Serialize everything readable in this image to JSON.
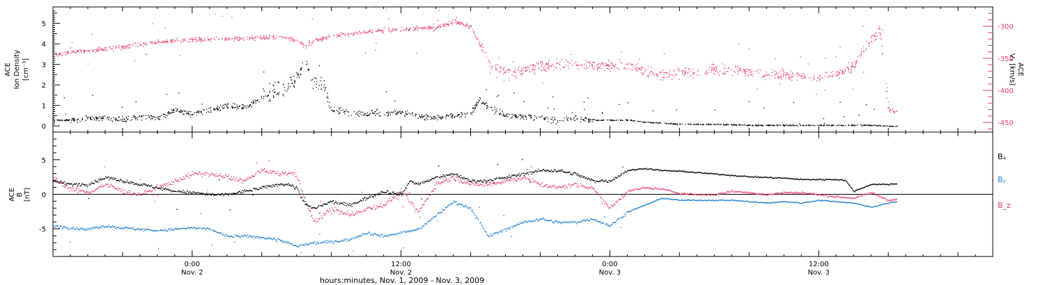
{
  "figure": {
    "xaxis_label": "hours:minutes, Nov.  1, 2009 - Nov.  3, 2009",
    "x_ticks": [
      {
        "hours": 24,
        "time": "0:00",
        "date": "Nov. 2"
      },
      {
        "hours": 36,
        "time": "12:00",
        "date": "Nov. 2"
      },
      {
        "hours": 48,
        "time": "0:00",
        "date": "Nov. 3"
      },
      {
        "hours": 60,
        "time": "12:00",
        "date": "Nov. 3"
      }
    ]
  },
  "colors": {
    "density": "#000000",
    "speed": "#e8416a",
    "bx": "#000000",
    "by": "#1a7fd4",
    "bz": "#e8416a"
  },
  "chart_data": [
    {
      "type": "scatter",
      "title": "",
      "xlabel": "hours:minutes, Nov.  1, 2009 - Nov.  3, 2009",
      "xunit": "hours since Nov. 1, 2009 00:00",
      "xlim": [
        16,
        70
      ],
      "ylabel_left_lines": [
        "ACE",
        "Ion Density",
        "[cm⁻³]"
      ],
      "ylim_left": [
        -0.3,
        5.8
      ],
      "yticks_left": [
        "0",
        "1",
        "2",
        "3",
        "4",
        "5"
      ],
      "ylabel_right_lines": [
        "ACE",
        "Vₓ [km/s]"
      ],
      "ylim_right": [
        -465,
        -270
      ],
      "yticks_right": [
        "-300",
        "-350",
        "-400",
        "-450"
      ],
      "series": [
        {
          "axis": "left",
          "x": [
            16,
            17,
            18,
            19,
            20,
            21,
            22,
            23,
            24,
            25,
            26,
            27,
            28,
            29,
            29.5,
            30,
            30.5,
            31,
            31.5,
            32,
            33,
            34,
            35,
            36,
            37,
            38,
            38.5,
            39,
            40,
            40.5,
            41,
            42,
            43,
            44,
            45,
            46,
            47,
            48,
            49,
            50,
            51,
            52,
            54,
            56,
            58,
            60,
            62,
            63,
            64,
            64.5
          ],
          "y": [
            0.3,
            0.3,
            0.4,
            0.4,
            0.3,
            0.5,
            0.4,
            0.8,
            0.6,
            0.8,
            1.0,
            0.9,
            1.4,
            1.8,
            2.0,
            2.3,
            3.2,
            2.2,
            2.0,
            0.8,
            0.7,
            0.6,
            0.6,
            0.7,
            0.5,
            0.4,
            0.5,
            0.5,
            0.6,
            1.3,
            0.9,
            0.5,
            0.5,
            0.4,
            0.3,
            0.4,
            0.3,
            0.3,
            0.3,
            0.2,
            0.15,
            0.1,
            0.1,
            0.05,
            0.05,
            0.05,
            0.05,
            0.05,
            0.0,
            0.0
          ]
        },
        {
          "axis": "right",
          "x": [
            16,
            17,
            18,
            19,
            20,
            21,
            22,
            23,
            24,
            25,
            26,
            27,
            28,
            29,
            29.5,
            30,
            30.5,
            31,
            32,
            33,
            34,
            35,
            36,
            37,
            38,
            39,
            40,
            41,
            42,
            43,
            44,
            45,
            46,
            47,
            48,
            49,
            50,
            51,
            52,
            53,
            54,
            55,
            56,
            57,
            58,
            59,
            60,
            61,
            62,
            62.5,
            63,
            63.5,
            64,
            64.5
          ],
          "y": [
            -345,
            -340,
            -338,
            -335,
            -332,
            -328,
            -325,
            -322,
            -320,
            -320,
            -319,
            -318,
            -317,
            -316,
            -318,
            -322,
            -332,
            -322,
            -315,
            -312,
            -308,
            -305,
            -305,
            -302,
            -302,
            -292,
            -300,
            -355,
            -372,
            -368,
            -362,
            -360,
            -358,
            -362,
            -362,
            -360,
            -370,
            -375,
            -370,
            -372,
            -365,
            -368,
            -370,
            -375,
            -375,
            -378,
            -378,
            -375,
            -360,
            -340,
            -320,
            -305,
            -430,
            -433
          ]
        }
      ]
    },
    {
      "type": "line",
      "title": "",
      "xlabel": "hours:minutes, Nov.  1, 2009 - Nov.  3, 2009",
      "xunit": "hours since Nov. 1, 2009 00:00",
      "xlim": [
        16,
        70
      ],
      "ylabel_lines": [
        "ACE",
        "B",
        "[nT]"
      ],
      "ylim": [
        -9,
        9
      ],
      "yticks": [
        "5",
        "0",
        "-5"
      ],
      "zero_line": true,
      "series": [
        {
          "name": "Bₓ",
          "x": [
            16,
            17,
            18,
            19,
            20,
            21,
            22,
            23,
            24,
            25,
            26,
            27,
            28,
            29,
            29.5,
            30,
            30.5,
            31,
            32,
            33,
            34,
            35,
            36,
            36.5,
            37,
            38,
            39,
            40,
            41,
            42,
            43,
            44,
            45,
            46,
            47,
            48,
            49,
            50,
            51,
            52,
            53,
            54,
            55,
            56,
            57,
            58,
            59,
            60,
            61,
            61.5,
            62,
            63,
            64,
            64.5
          ],
          "y": [
            2.0,
            1.5,
            1.5,
            2.5,
            2.0,
            1.5,
            1.0,
            0.5,
            0.3,
            0.0,
            0.0,
            0.5,
            1.0,
            1.5,
            1.5,
            1.0,
            -1.5,
            -2.0,
            -1.0,
            -1.5,
            -0.5,
            0.5,
            0.0,
            2.0,
            1.5,
            2.5,
            3.0,
            2.0,
            2.0,
            2.5,
            3.0,
            3.5,
            3.5,
            3.0,
            2.0,
            2.0,
            3.5,
            3.8,
            3.5,
            3.4,
            3.2,
            3.0,
            2.8,
            2.6,
            2.5,
            2.4,
            2.2,
            2.2,
            2.2,
            2.1,
            0.5,
            1.5,
            1.5,
            1.6
          ]
        },
        {
          "name": "Bᵧ",
          "x": [
            16,
            17,
            18,
            19,
            20,
            21,
            22,
            23,
            24,
            25,
            26,
            27,
            28,
            29,
            29.5,
            30,
            30.5,
            31,
            32,
            33,
            34,
            35,
            36,
            37,
            38,
            39,
            40,
            41,
            42,
            43,
            44,
            45,
            46,
            47,
            48,
            49,
            50,
            51,
            52,
            53,
            54,
            55,
            56,
            57,
            58,
            59,
            60,
            61,
            62,
            63,
            64,
            64.5
          ],
          "y": [
            -4.5,
            -4.8,
            -5.0,
            -4.5,
            -4.8,
            -5.0,
            -5.2,
            -5.0,
            -4.8,
            -5.0,
            -6.0,
            -6.0,
            -6.2,
            -6.5,
            -7.0,
            -7.5,
            -7.2,
            -7.0,
            -6.8,
            -6.5,
            -5.5,
            -6.0,
            -5.5,
            -5.0,
            -3.0,
            -1.0,
            -2.0,
            -6.0,
            -5.0,
            -4.0,
            -3.5,
            -4.0,
            -4.0,
            -3.5,
            -4.5,
            -2.5,
            -1.5,
            -0.5,
            -0.8,
            -0.8,
            -0.8,
            -0.8,
            -1.0,
            -1.2,
            -1.0,
            -1.2,
            -0.8,
            -1.0,
            -1.2,
            -1.8,
            -1.2,
            -1.0
          ]
        },
        {
          "name": "B_z",
          "x": [
            16,
            17,
            18,
            19,
            20,
            21,
            22,
            23,
            24,
            25,
            26,
            27,
            28,
            29,
            29.5,
            30,
            30.5,
            31,
            32,
            33,
            34,
            35,
            36,
            37,
            38,
            39,
            40,
            41,
            42,
            43,
            44,
            45,
            46,
            47,
            48,
            49,
            50,
            51,
            52,
            53,
            54,
            55,
            56,
            57,
            58,
            59,
            60,
            61,
            62,
            63,
            64,
            64.5
          ],
          "y": [
            2.5,
            0.8,
            0.3,
            1.5,
            0.5,
            0.0,
            1.0,
            2.0,
            3.0,
            3.0,
            2.5,
            2.0,
            3.5,
            3.0,
            3.2,
            2.8,
            -1.0,
            -4.0,
            -2.0,
            -3.0,
            -2.0,
            -1.5,
            0.5,
            -2.5,
            1.5,
            2.5,
            1.5,
            1.5,
            2.0,
            2.5,
            1.5,
            1.0,
            1.5,
            1.0,
            -2.0,
            0.5,
            1.0,
            0.8,
            0.2,
            0.0,
            0.0,
            0.5,
            0.3,
            0.0,
            0.3,
            0.3,
            0.0,
            -0.3,
            -0.5,
            0.3,
            -0.8,
            -0.7
          ]
        }
      ]
    }
  ]
}
